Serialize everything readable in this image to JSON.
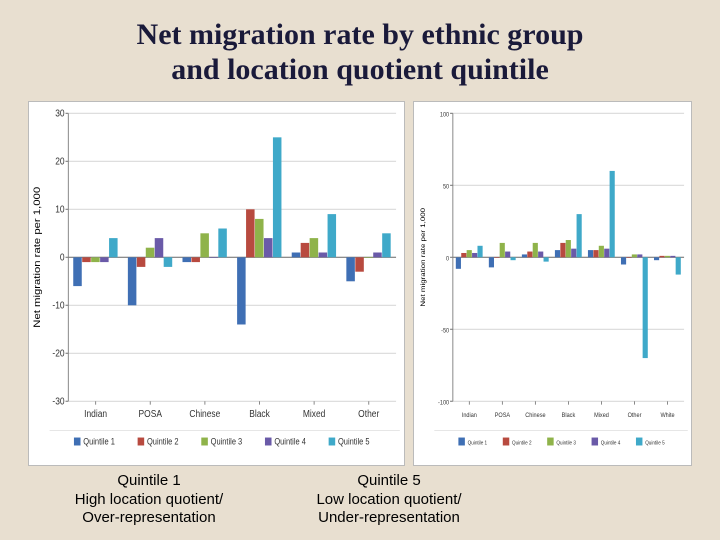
{
  "title_line1": "Net migration rate by ethnic group",
  "title_line2": "and location quotient quintile",
  "title_fontsize": 30,
  "title_color": "#1a1a3a",
  "background_color": "#e8dfd0",
  "series_colors": [
    "#3f6fb4",
    "#b84a3f",
    "#8fb34a",
    "#6a5aa8",
    "#3fa9c9"
  ],
  "series_labels": [
    "Quintile 1",
    "Quintile 2",
    "Quintile 3",
    "Quintile 4",
    "Quintile 5"
  ],
  "left_chart": {
    "type": "grouped-bar",
    "categories": [
      "Indian",
      "POSA",
      "Chinese",
      "Black",
      "Mixed",
      "Other"
    ],
    "ylabel": "Net migration rate per 1,000",
    "ylim": [
      -30,
      30
    ],
    "ytick_step": 10,
    "bar_width": 0.82,
    "grid_color": "#d9d9d9",
    "axis_color": "#808080",
    "tick_fontsize": 9,
    "label_fontsize": 10,
    "series": [
      [
        -6,
        -10,
        -1,
        -14,
        1,
        -5
      ],
      [
        -1,
        -2,
        -1,
        10,
        3,
        -3
      ],
      [
        -1,
        2,
        5,
        8,
        4,
        0
      ],
      [
        -1,
        4,
        0,
        4,
        1,
        1
      ],
      [
        4,
        -2,
        6,
        25,
        9,
        5
      ]
    ]
  },
  "right_chart": {
    "type": "grouped-bar",
    "categories": [
      "Indian",
      "POSA",
      "Chinese",
      "Black",
      "Mixed",
      "Other",
      "White"
    ],
    "ylabel": "Net migration rate per 1,000",
    "ylim": [
      -100,
      100
    ],
    "ytick_step": 50,
    "bar_width": 0.82,
    "grid_color": "#d9d9d9",
    "axis_color": "#808080",
    "tick_fontsize": 6,
    "label_fontsize": 7,
    "series": [
      [
        -8,
        -7,
        2,
        5,
        5,
        -5,
        -2
      ],
      [
        3,
        0,
        4,
        10,
        5,
        0,
        1
      ],
      [
        5,
        10,
        10,
        12,
        8,
        2,
        1
      ],
      [
        3,
        4,
        4,
        6,
        6,
        2,
        1
      ],
      [
        8,
        -2,
        -3,
        30,
        60,
        -70,
        -12
      ]
    ]
  },
  "caption_left": {
    "l1": "Quintile 1",
    "l2": "High location quotient/",
    "l3": "Over-representation"
  },
  "caption_right": {
    "l1": "Quintile 5",
    "l2": "Low location quotient/",
    "l3": "Under-representation"
  },
  "caption_fontsize": 15
}
